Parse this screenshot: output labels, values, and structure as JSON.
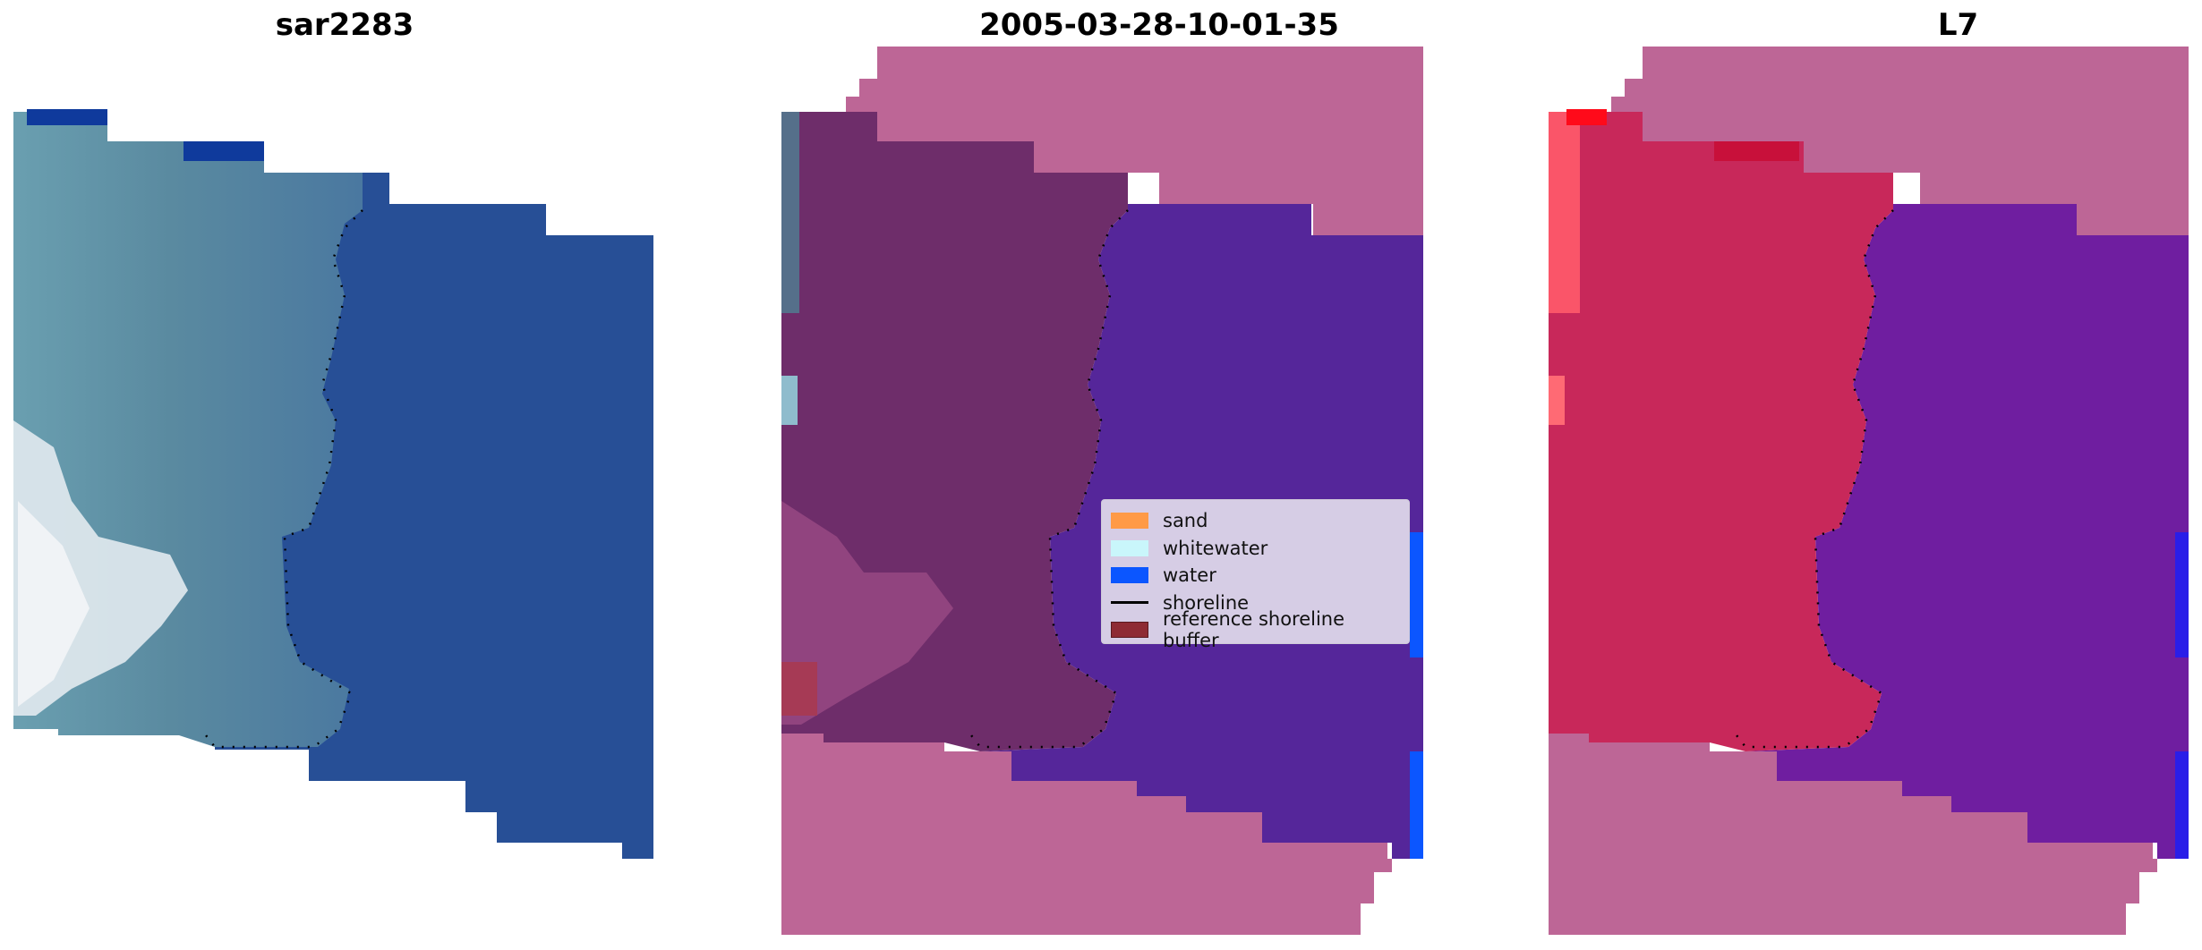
{
  "panels": [
    {
      "title": "sar2283"
    },
    {
      "title": "2005-03-28-10-01-35"
    },
    {
      "title": "L7"
    }
  ],
  "legend": {
    "items": [
      {
        "label": "sand",
        "color": "#ff9a46",
        "kind": "patch"
      },
      {
        "label": "whitewater",
        "color": "#c9f6fb",
        "kind": "patch"
      },
      {
        "label": "water",
        "color": "#0b56ff",
        "kind": "patch"
      },
      {
        "label": "shoreline",
        "color": "#000000",
        "kind": "line"
      },
      {
        "label": "reference shoreline buffer",
        "color": "#8e2b34",
        "kind": "patch"
      }
    ]
  },
  "colors": {
    "rgb_land": "#5f8ea0",
    "rgb_water": "#274f96",
    "rgb_whitewater": "#e8eef2",
    "nodata_overlay": "#bd6696",
    "class_land": "#6e2d6a",
    "class_water": "#55269a",
    "class_water_pure": "#0b56ff",
    "l7_land": "#c8285a",
    "l7_water": "#6f1ea0"
  }
}
